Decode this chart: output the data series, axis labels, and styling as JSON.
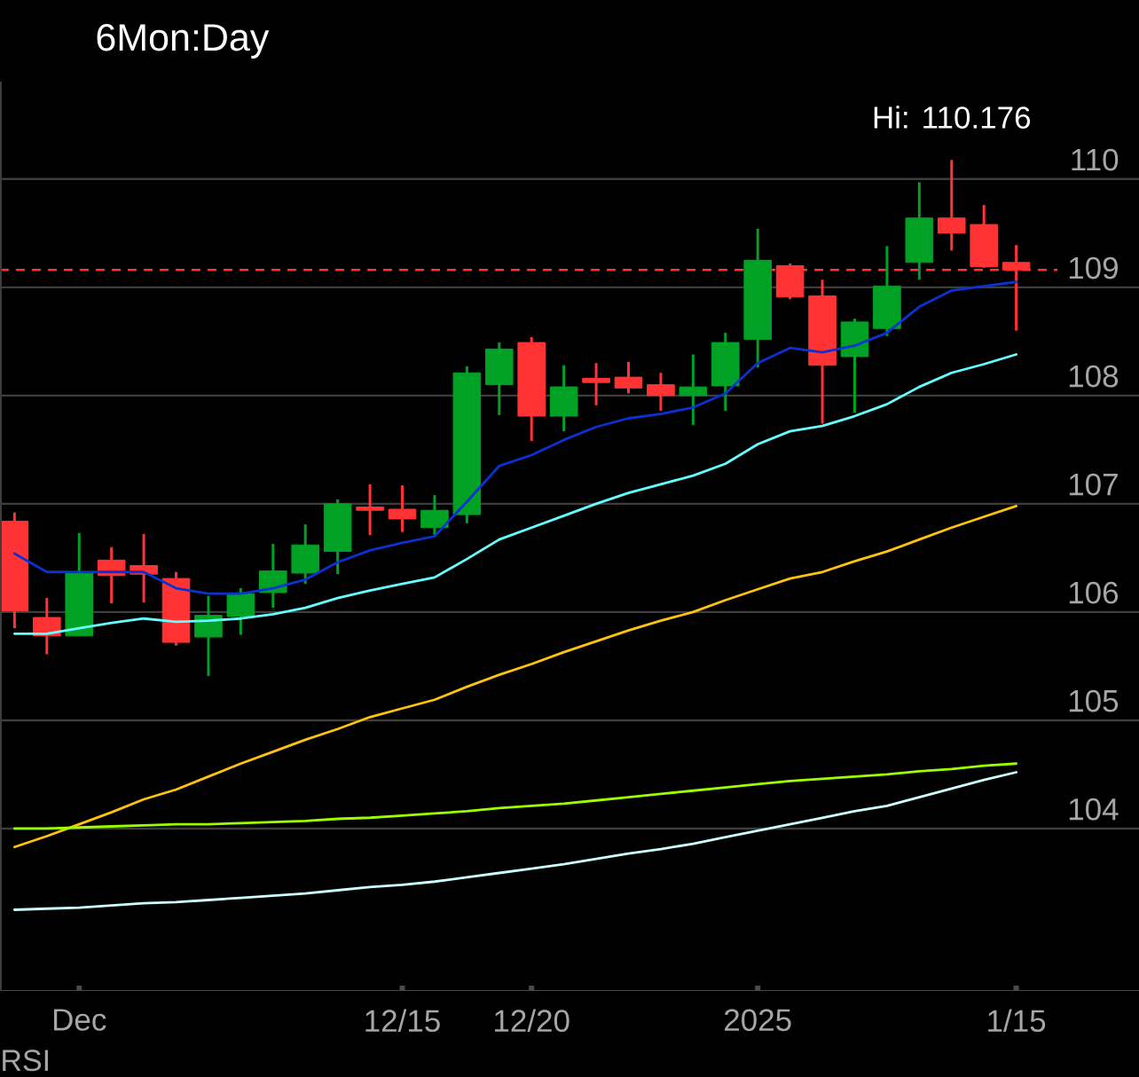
{
  "chart_data": {
    "type": "candlestick",
    "title": "6Mon:Day",
    "categories": [
      null,
      null,
      "Dec",
      null,
      null,
      null,
      null,
      null,
      null,
      null,
      null,
      null,
      "12/15",
      null,
      null,
      null,
      "12/20",
      null,
      null,
      null,
      null,
      null,
      null,
      "2025",
      null,
      null,
      null,
      null,
      null,
      null,
      null,
      "1/15"
    ],
    "ohlc": [
      [
        106.84,
        106.92,
        105.85,
        106.01
      ],
      [
        105.95,
        106.13,
        105.61,
        105.78
      ],
      [
        105.78,
        106.73,
        105.78,
        106.36
      ],
      [
        106.48,
        106.6,
        106.08,
        106.34
      ],
      [
        106.43,
        106.72,
        106.09,
        106.35
      ],
      [
        106.31,
        106.37,
        105.69,
        105.72
      ],
      [
        105.77,
        106.15,
        105.41,
        105.97
      ],
      [
        105.96,
        106.22,
        105.79,
        106.17
      ],
      [
        106.18,
        106.63,
        106.04,
        106.38
      ],
      [
        106.36,
        106.81,
        106.26,
        106.62
      ],
      [
        106.56,
        107.04,
        106.35,
        107.0
      ],
      [
        106.97,
        107.18,
        106.71,
        106.94
      ],
      [
        106.95,
        107.17,
        106.74,
        106.86
      ],
      [
        106.78,
        107.08,
        106.71,
        106.94
      ],
      [
        106.9,
        108.27,
        106.82,
        108.21
      ],
      [
        108.1,
        108.49,
        107.82,
        108.43
      ],
      [
        108.49,
        108.54,
        107.58,
        107.81
      ],
      [
        107.81,
        108.28,
        107.67,
        108.08
      ],
      [
        108.16,
        108.3,
        107.91,
        108.12
      ],
      [
        108.17,
        108.31,
        108.02,
        108.07
      ],
      [
        108.1,
        108.21,
        107.86,
        108.0
      ],
      [
        108.0,
        108.38,
        107.73,
        108.08
      ],
      [
        108.09,
        108.58,
        107.86,
        108.49
      ],
      [
        108.52,
        109.54,
        108.26,
        109.25
      ],
      [
        109.2,
        109.22,
        108.89,
        108.91
      ],
      [
        108.92,
        109.07,
        107.74,
        108.28
      ],
      [
        108.36,
        108.71,
        107.84,
        108.68
      ],
      [
        108.62,
        109.38,
        108.55,
        109.01
      ],
      [
        109.23,
        109.97,
        109.07,
        109.64
      ],
      [
        109.64,
        110.176,
        109.34,
        109.5
      ],
      [
        109.58,
        109.76,
        109.18,
        109.19
      ],
      [
        109.23,
        109.39,
        108.6,
        109.16
      ]
    ],
    "colors": [
      "#ff3333",
      "#ff3333",
      "#00a124",
      "#ff3333",
      "#ff3333",
      "#ff3333",
      "#00a124",
      "#00a124",
      "#00a124",
      "#00a124",
      "#00a124",
      "#ff3333",
      "#ff3333",
      "#00a124",
      "#00a124",
      "#00a124",
      "#ff3333",
      "#00a124",
      "#ff3333",
      "#ff3333",
      "#ff3333",
      "#00a124",
      "#00a124",
      "#00a124",
      "#ff3333",
      "#ff3333",
      "#00a124",
      "#00a124",
      "#00a124",
      "#ff3333",
      "#ff3333",
      "#ff3333"
    ],
    "series": [
      {
        "type": "line",
        "color": "#0a32d2",
        "values": [
          106.54,
          106.37,
          106.37,
          106.37,
          106.37,
          106.22,
          106.17,
          106.17,
          106.22,
          106.3,
          106.46,
          106.57,
          106.64,
          106.7,
          107.02,
          107.35,
          107.45,
          107.59,
          107.71,
          107.79,
          107.83,
          107.89,
          108.02,
          108.3,
          108.44,
          108.4,
          108.46,
          108.58,
          108.82,
          108.97,
          109.01,
          109.05
        ]
      },
      {
        "type": "line",
        "color": "#66ffff",
        "values": [
          105.8,
          105.8,
          105.85,
          105.9,
          105.94,
          105.91,
          105.92,
          105.94,
          105.98,
          106.04,
          106.13,
          106.2,
          106.26,
          106.32,
          106.49,
          106.67,
          106.78,
          106.89,
          107.0,
          107.1,
          107.18,
          107.26,
          107.37,
          107.55,
          107.67,
          107.72,
          107.81,
          107.92,
          108.08,
          108.21,
          108.29,
          108.38
        ]
      },
      {
        "type": "line",
        "color": "#ffc20e",
        "values": [
          103.83,
          103.93,
          104.04,
          104.15,
          104.27,
          104.36,
          104.48,
          104.6,
          104.71,
          104.82,
          104.92,
          105.03,
          105.11,
          105.19,
          105.31,
          105.42,
          105.52,
          105.63,
          105.73,
          105.83,
          105.92,
          106.0,
          106.11,
          106.21,
          106.31,
          106.37,
          106.47,
          106.56,
          106.67,
          106.78,
          106.88,
          106.98
        ]
      },
      {
        "type": "line",
        "color": "#9cff00",
        "values": [
          104.0,
          104.0,
          104.01,
          104.02,
          104.03,
          104.04,
          104.04,
          104.05,
          104.06,
          104.07,
          104.09,
          104.1,
          104.12,
          104.14,
          104.16,
          104.19,
          104.21,
          104.23,
          104.26,
          104.29,
          104.32,
          104.35,
          104.38,
          104.41,
          104.44,
          104.46,
          104.48,
          104.5,
          104.53,
          104.55,
          104.58,
          104.6
        ]
      },
      {
        "type": "line",
        "color": "#ccffff",
        "values": [
          103.25,
          103.26,
          103.27,
          103.29,
          103.31,
          103.32,
          103.34,
          103.36,
          103.38,
          103.4,
          103.43,
          103.46,
          103.48,
          103.51,
          103.55,
          103.59,
          103.63,
          103.67,
          103.72,
          103.77,
          103.81,
          103.86,
          103.92,
          103.98,
          104.04,
          104.1,
          104.16,
          104.21,
          104.29,
          104.37,
          104.45,
          104.52
        ]
      }
    ],
    "ylim": [
      102.5,
      110.9
    ],
    "yticks": [
      104,
      105,
      106,
      107,
      108,
      109,
      110
    ],
    "grid": "y",
    "ref_lines": [
      {
        "axis": "y",
        "value": 109.16,
        "color": "#ff3333",
        "line_style": "dashed"
      }
    ],
    "annotations": [
      {
        "text": "Hi: 110.176",
        "y": 110.176
      },
      "RSI"
    ]
  }
}
